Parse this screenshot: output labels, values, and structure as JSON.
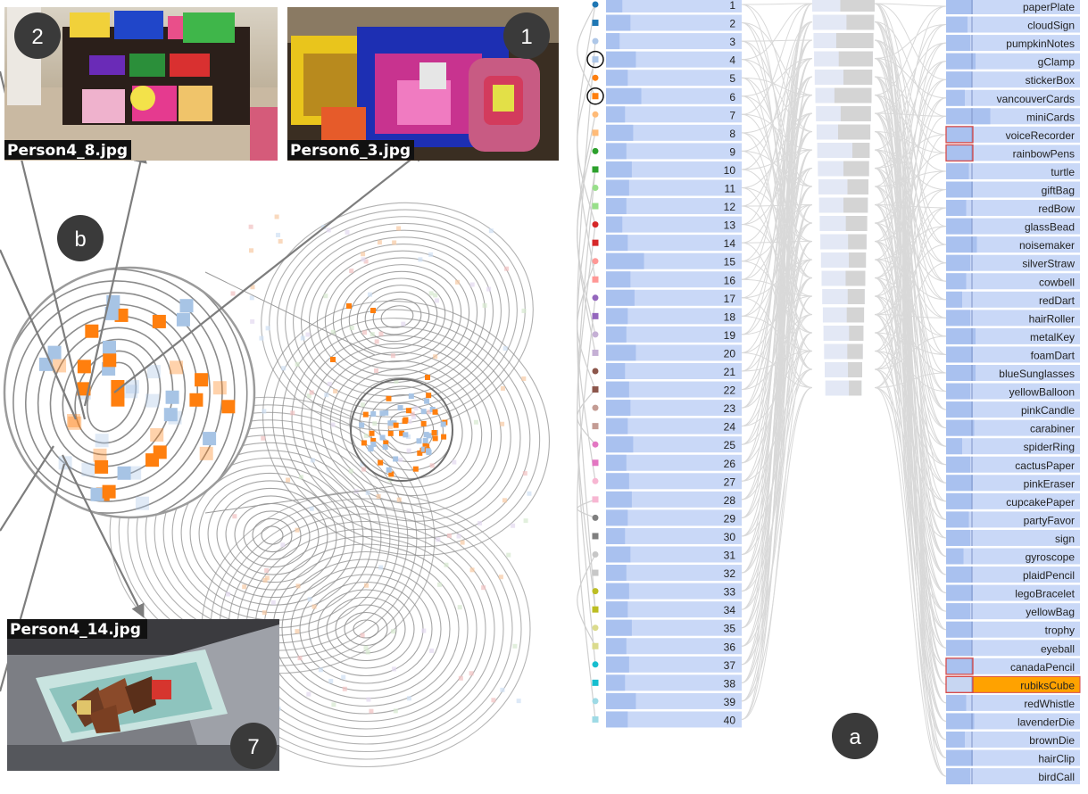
{
  "badges": {
    "photo_top_left": "2",
    "photo_top_mid": "1",
    "photo_bottom": "7",
    "lens": "b",
    "panel": "a"
  },
  "photos": {
    "top_left": {
      "filename": "Person4_8.jpg"
    },
    "top_mid": {
      "filename": "Person6_3.jpg"
    },
    "bottom": {
      "filename": "Person4_14.jpg"
    }
  },
  "colors": {
    "bar_bg": "#c9d8f7",
    "bar_fill": "#a9c1ef",
    "gray_bar": "#d4d4d4",
    "orange": "#ff7f0e",
    "light_blue": "#a7c4e5",
    "highlight": "#ffa200",
    "badge": "#3a3a3a",
    "contour": "#8c8c8c",
    "link": "#d9d9d9",
    "arrow": "#7d7d7d"
  },
  "clusters": [
    {
      "label": "1",
      "sym": "circle",
      "color": "#1f77b4",
      "fill": 0.12,
      "selected": false
    },
    {
      "label": "2",
      "sym": "square",
      "color": "#1f77b4",
      "fill": 0.18,
      "selected": false
    },
    {
      "label": "3",
      "sym": "circle",
      "color": "#aec7e8",
      "fill": 0.1,
      "selected": false
    },
    {
      "label": "4",
      "sym": "square",
      "color": "#aec7e8",
      "fill": 0.22,
      "selected": true
    },
    {
      "label": "5",
      "sym": "circle",
      "color": "#ff7f0e",
      "fill": 0.16,
      "selected": false
    },
    {
      "label": "6",
      "sym": "square",
      "color": "#ff7f0e",
      "fill": 0.26,
      "selected": true
    },
    {
      "label": "7",
      "sym": "circle",
      "color": "#ffbb78",
      "fill": 0.14,
      "selected": false
    },
    {
      "label": "8",
      "sym": "square",
      "color": "#ffbb78",
      "fill": 0.2,
      "selected": false
    },
    {
      "label": "9",
      "sym": "circle",
      "color": "#2ca02c",
      "fill": 0.15,
      "selected": false
    },
    {
      "label": "10",
      "sym": "square",
      "color": "#2ca02c",
      "fill": 0.19,
      "selected": false
    },
    {
      "label": "11",
      "sym": "circle",
      "color": "#98df8a",
      "fill": 0.17,
      "selected": false
    },
    {
      "label": "12",
      "sym": "square",
      "color": "#98df8a",
      "fill": 0.15,
      "selected": false
    },
    {
      "label": "13",
      "sym": "circle",
      "color": "#d62728",
      "fill": 0.12,
      "selected": false
    },
    {
      "label": "14",
      "sym": "square",
      "color": "#d62728",
      "fill": 0.16,
      "selected": false
    },
    {
      "label": "15",
      "sym": "circle",
      "color": "#ff9896",
      "fill": 0.28,
      "selected": false
    },
    {
      "label": "16",
      "sym": "square",
      "color": "#ff9896",
      "fill": 0.18,
      "selected": false
    },
    {
      "label": "17",
      "sym": "circle",
      "color": "#9467bd",
      "fill": 0.21,
      "selected": false
    },
    {
      "label": "18",
      "sym": "square",
      "color": "#9467bd",
      "fill": 0.16,
      "selected": false
    },
    {
      "label": "19",
      "sym": "circle",
      "color": "#c5b0d5",
      "fill": 0.15,
      "selected": false
    },
    {
      "label": "20",
      "sym": "square",
      "color": "#c5b0d5",
      "fill": 0.22,
      "selected": false
    },
    {
      "label": "21",
      "sym": "circle",
      "color": "#8c564b",
      "fill": 0.14,
      "selected": false
    },
    {
      "label": "22",
      "sym": "square",
      "color": "#8c564b",
      "fill": 0.17,
      "selected": false
    },
    {
      "label": "23",
      "sym": "circle",
      "color": "#c49c94",
      "fill": 0.18,
      "selected": false
    },
    {
      "label": "24",
      "sym": "square",
      "color": "#c49c94",
      "fill": 0.16,
      "selected": false
    },
    {
      "label": "25",
      "sym": "circle",
      "color": "#e377c2",
      "fill": 0.2,
      "selected": false
    },
    {
      "label": "26",
      "sym": "square",
      "color": "#e377c2",
      "fill": 0.15,
      "selected": false
    },
    {
      "label": "27",
      "sym": "circle",
      "color": "#f7b6d2",
      "fill": 0.17,
      "selected": false
    },
    {
      "label": "28",
      "sym": "square",
      "color": "#f7b6d2",
      "fill": 0.19,
      "selected": false
    },
    {
      "label": "29",
      "sym": "circle",
      "color": "#7f7f7f",
      "fill": 0.16,
      "selected": false
    },
    {
      "label": "30",
      "sym": "square",
      "color": "#7f7f7f",
      "fill": 0.14,
      "selected": false
    },
    {
      "label": "31",
      "sym": "circle",
      "color": "#c7c7c7",
      "fill": 0.18,
      "selected": false
    },
    {
      "label": "32",
      "sym": "square",
      "color": "#c7c7c7",
      "fill": 0.15,
      "selected": false
    },
    {
      "label": "33",
      "sym": "circle",
      "color": "#bcbd22",
      "fill": 0.17,
      "selected": false
    },
    {
      "label": "34",
      "sym": "square",
      "color": "#bcbd22",
      "fill": 0.16,
      "selected": false
    },
    {
      "label": "35",
      "sym": "circle",
      "color": "#dbdb8d",
      "fill": 0.19,
      "selected": false
    },
    {
      "label": "36",
      "sym": "square",
      "color": "#dbdb8d",
      "fill": 0.15,
      "selected": false
    },
    {
      "label": "37",
      "sym": "circle",
      "color": "#17becf",
      "fill": 0.17,
      "selected": false
    },
    {
      "label": "38",
      "sym": "square",
      "color": "#17becf",
      "fill": 0.14,
      "selected": false
    },
    {
      "label": "39",
      "sym": "circle",
      "color": "#9edae5",
      "fill": 0.22,
      "selected": false
    },
    {
      "label": "40",
      "sym": "square",
      "color": "#9edae5",
      "fill": 0.16,
      "selected": false
    }
  ],
  "middle_column": [
    0.55,
    0.45,
    0.62,
    0.58,
    0.5,
    0.66,
    0.55,
    0.6,
    0.33,
    0.5,
    0.42,
    0.5,
    0.45,
    0.4,
    0.38,
    0.45,
    0.4,
    0.42,
    0.36,
    0.4,
    0.38,
    0.35
  ],
  "objects": [
    {
      "name": "paperPlate",
      "fill": 0.2,
      "state": "normal"
    },
    {
      "name": "cloudSign",
      "fill": 0.16,
      "state": "normal"
    },
    {
      "name": "pumpkinNotes",
      "fill": 0.18,
      "state": "normal"
    },
    {
      "name": "gClamp",
      "fill": 0.22,
      "state": "normal"
    },
    {
      "name": "stickerBox",
      "fill": 0.19,
      "state": "normal"
    },
    {
      "name": "vancouverCards",
      "fill": 0.14,
      "state": "normal"
    },
    {
      "name": "miniCards",
      "fill": 0.33,
      "state": "normal"
    },
    {
      "name": "voiceRecorder",
      "fill": 0.2,
      "state": "outlined"
    },
    {
      "name": "rainbowPens",
      "fill": 0.2,
      "state": "outlined"
    },
    {
      "name": "turtle",
      "fill": 0.17,
      "state": "normal"
    },
    {
      "name": "giftBag",
      "fill": 0.2,
      "state": "normal"
    },
    {
      "name": "redBow",
      "fill": 0.15,
      "state": "normal"
    },
    {
      "name": "glassBead",
      "fill": 0.19,
      "state": "normal"
    },
    {
      "name": "noisemaker",
      "fill": 0.23,
      "state": "normal"
    },
    {
      "name": "silverStraw",
      "fill": 0.18,
      "state": "normal"
    },
    {
      "name": "cowbell",
      "fill": 0.15,
      "state": "normal"
    },
    {
      "name": "redDart",
      "fill": 0.12,
      "state": "normal"
    },
    {
      "name": "hairRoller",
      "fill": 0.18,
      "state": "normal"
    },
    {
      "name": "metalKey",
      "fill": 0.22,
      "state": "normal"
    },
    {
      "name": "foamDart",
      "fill": 0.2,
      "state": "normal"
    },
    {
      "name": "blueSunglasses",
      "fill": 0.22,
      "state": "normal"
    },
    {
      "name": "yellowBalloon",
      "fill": 0.18,
      "state": "normal"
    },
    {
      "name": "pinkCandle",
      "fill": 0.2,
      "state": "normal"
    },
    {
      "name": "carabiner",
      "fill": 0.21,
      "state": "normal"
    },
    {
      "name": "spiderRing",
      "fill": 0.12,
      "state": "normal"
    },
    {
      "name": "cactusPaper",
      "fill": 0.18,
      "state": "normal"
    },
    {
      "name": "pinkEraser",
      "fill": 0.2,
      "state": "normal"
    },
    {
      "name": "cupcakePaper",
      "fill": 0.19,
      "state": "normal"
    },
    {
      "name": "partyFavor",
      "fill": 0.17,
      "state": "normal"
    },
    {
      "name": "sign",
      "fill": 0.18,
      "state": "normal"
    },
    {
      "name": "gyroscope",
      "fill": 0.13,
      "state": "normal"
    },
    {
      "name": "plaidPencil",
      "fill": 0.19,
      "state": "normal"
    },
    {
      "name": "legoBracelet",
      "fill": 0.2,
      "state": "normal"
    },
    {
      "name": "yellowBag",
      "fill": 0.18,
      "state": "normal"
    },
    {
      "name": "trophy",
      "fill": 0.2,
      "state": "normal"
    },
    {
      "name": "eyeball",
      "fill": 0.19,
      "state": "normal"
    },
    {
      "name": "canadaPencil",
      "fill": 0.2,
      "state": "outlined"
    },
    {
      "name": "rubiksCube",
      "fill": 0.2,
      "state": "highlighted"
    },
    {
      "name": "redWhistle",
      "fill": 0.15,
      "state": "normal"
    },
    {
      "name": "lavenderDie",
      "fill": 0.21,
      "state": "normal"
    },
    {
      "name": "brownDie",
      "fill": 0.14,
      "state": "normal"
    },
    {
      "name": "hairClip",
      "fill": 0.2,
      "state": "normal"
    },
    {
      "name": "birdCall",
      "fill": 0.18,
      "state": "normal"
    }
  ]
}
